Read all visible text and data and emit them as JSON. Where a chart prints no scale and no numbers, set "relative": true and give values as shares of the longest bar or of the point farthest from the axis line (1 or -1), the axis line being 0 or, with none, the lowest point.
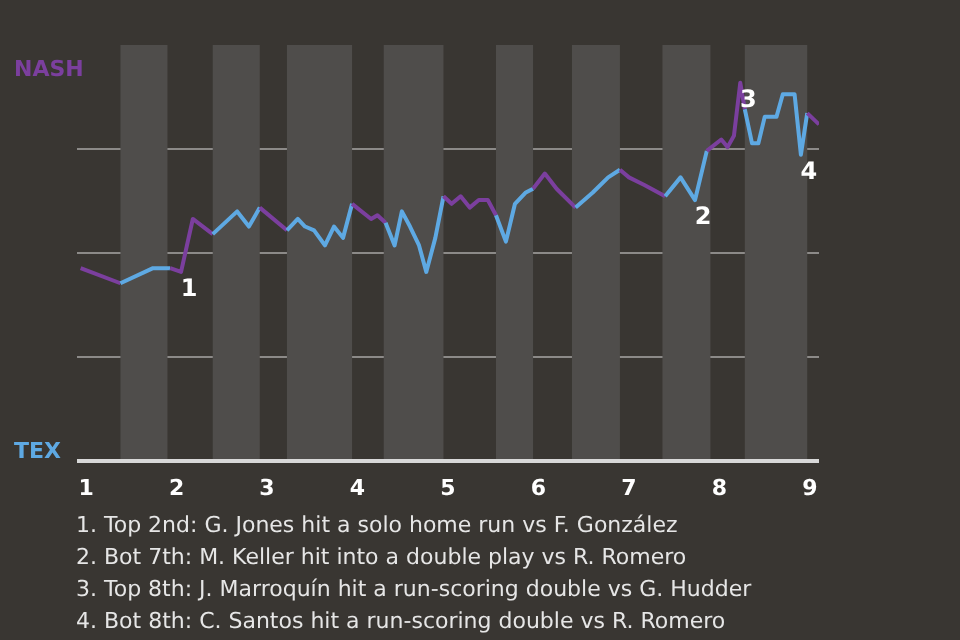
{
  "chart_data": {
    "type": "line",
    "relative": true,
    "series": [
      {
        "color": "#7b3f9e",
        "x": [
          0.94,
          1.38
        ],
        "values": [
          0.51,
          0.47
        ]
      },
      {
        "color": "#5ea9e3",
        "x": [
          1.38,
          1.74,
          1.93
        ],
        "values": [
          0.47,
          0.51,
          0.51
        ]
      },
      {
        "color": "#7b3f9e",
        "x": [
          1.93,
          2.05,
          2.18,
          2.4
        ],
        "values": [
          0.51,
          0.5,
          0.64,
          0.6
        ]
      },
      {
        "color": "#5ea9e3",
        "x": [
          2.4,
          2.67,
          2.8,
          2.92
        ],
        "values": [
          0.6,
          0.66,
          0.62,
          0.67
        ]
      },
      {
        "color": "#7b3f9e",
        "x": [
          2.92,
          3.22
        ],
        "values": [
          0.67,
          0.61
        ]
      },
      {
        "color": "#5ea9e3",
        "x": [
          3.22,
          3.34,
          3.42,
          3.52,
          3.64,
          3.74,
          3.84,
          3.94
        ],
        "values": [
          0.61,
          0.64,
          0.62,
          0.61,
          0.57,
          0.62,
          0.59,
          0.68
        ]
      },
      {
        "color": "#7b3f9e",
        "x": [
          3.94,
          4.15,
          4.22,
          4.31
        ],
        "values": [
          0.68,
          0.64,
          0.65,
          0.63
        ]
      },
      {
        "color": "#5ea9e3",
        "x": [
          4.31,
          4.41,
          4.49,
          4.58,
          4.68,
          4.76,
          4.86,
          4.95
        ],
        "values": [
          0.63,
          0.57,
          0.66,
          0.62,
          0.57,
          0.5,
          0.59,
          0.7
        ]
      },
      {
        "color": "#7b3f9e",
        "x": [
          4.95,
          5.04,
          5.14,
          5.24,
          5.34,
          5.44,
          5.53
        ],
        "values": [
          0.7,
          0.68,
          0.7,
          0.67,
          0.69,
          0.69,
          0.65
        ]
      },
      {
        "color": "#5ea9e3",
        "x": [
          5.53,
          5.64,
          5.74,
          5.86,
          5.94
        ],
        "values": [
          0.65,
          0.58,
          0.68,
          0.71,
          0.72
        ]
      },
      {
        "color": "#7b3f9e",
        "x": [
          5.94,
          6.07,
          6.2,
          6.41
        ],
        "values": [
          0.72,
          0.76,
          0.72,
          0.67
        ]
      },
      {
        "color": "#5ea9e3",
        "x": [
          6.41,
          6.6,
          6.77,
          6.9
        ],
        "values": [
          0.67,
          0.71,
          0.75,
          0.77
        ]
      },
      {
        "color": "#7b3f9e",
        "x": [
          6.9,
          7.0,
          7.17,
          7.4
        ],
        "values": [
          0.77,
          0.75,
          0.73,
          0.7
        ]
      },
      {
        "color": "#5ea9e3",
        "x": [
          7.4,
          7.57,
          7.73,
          7.86
        ],
        "values": [
          0.7,
          0.75,
          0.69,
          0.82
        ]
      },
      {
        "color": "#7b3f9e",
        "x": [
          7.86,
          8.02,
          8.09,
          8.16,
          8.23,
          8.28
        ],
        "values": [
          0.82,
          0.85,
          0.83,
          0.86,
          1.0,
          0.93
        ]
      },
      {
        "color": "#5ea9e3",
        "x": [
          8.28,
          8.36,
          8.43,
          8.5,
          8.63,
          8.7,
          8.83,
          8.9,
          8.97
        ],
        "values": [
          0.93,
          0.84,
          0.84,
          0.91,
          0.91,
          0.97,
          0.97,
          0.81,
          0.92
        ]
      },
      {
        "color": "#7b3f9e",
        "x": [
          8.97,
          9.1
        ],
        "values": [
          0.92,
          0.89
        ]
      }
    ],
    "xlim": [
      0.9,
      9.1
    ],
    "xticks": [
      1,
      2,
      3,
      4,
      5,
      6,
      7,
      8,
      9
    ],
    "grid": "y",
    "bands": [
      {
        "axis": "x",
        "from": 1.38,
        "to": 1.9,
        "color": "#4f4d4b"
      },
      {
        "axis": "x",
        "from": 2.4,
        "to": 2.92,
        "color": "#4f4d4b"
      },
      {
        "axis": "x",
        "from": 3.22,
        "to": 3.94,
        "color": "#4f4d4b"
      },
      {
        "axis": "x",
        "from": 4.29,
        "to": 4.95,
        "color": "#4f4d4b"
      },
      {
        "axis": "x",
        "from": 5.53,
        "to": 5.94,
        "color": "#4f4d4b"
      },
      {
        "axis": "x",
        "from": 6.37,
        "to": 6.9,
        "color": "#4f4d4b"
      },
      {
        "axis": "x",
        "from": 7.37,
        "to": 7.9,
        "color": "#4f4d4b"
      },
      {
        "axis": "x",
        "from": 8.28,
        "to": 8.97,
        "color": "#4f4d4b"
      }
    ],
    "annotations": [
      "NASH",
      "TEX",
      {
        "text": "1",
        "x": 2.05,
        "y": 0.5
      },
      {
        "text": "2",
        "x": 7.73,
        "y": 0.69
      },
      {
        "text": "3",
        "x": 8.23,
        "y": 1.0
      },
      {
        "text": "4",
        "x": 8.9,
        "y": 0.81
      },
      "1. Top 2nd: G. Jones hit a solo home run vs F. González",
      "2. Bot 7th: M. Keller hit into a double play vs R. Romero",
      "3. Top 8th: J. Marroquín hit a run-scoring double vs G. Hudder",
      "4. Bot 8th: C. Santos hit a run-scoring double vs R. Romero"
    ]
  }
}
